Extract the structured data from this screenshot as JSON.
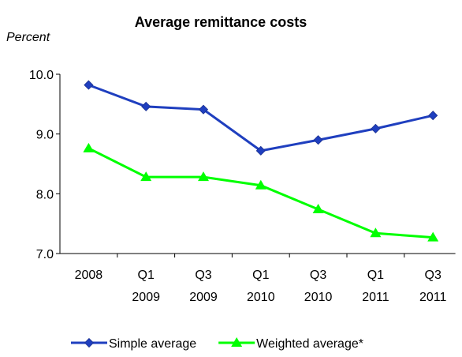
{
  "chart_data": {
    "type": "line",
    "title": "Average remittance costs",
    "y_label": "Percent",
    "categories": [
      "2008",
      "Q1 2009",
      "Q3 2009",
      "Q1 2010",
      "Q3 2010",
      "Q1 2011",
      "Q3 2011"
    ],
    "series": [
      {
        "name": "Simple average",
        "color": "#1f3fbf",
        "marker": "diamond",
        "values": [
          9.82,
          9.46,
          9.41,
          8.72,
          8.9,
          9.09,
          9.31
        ]
      },
      {
        "name": "Weighted average*",
        "color": "#00ff00",
        "marker": "triangle",
        "values": [
          8.76,
          8.28,
          8.28,
          8.14,
          7.74,
          7.34,
          7.27
        ]
      }
    ],
    "ylim": [
      7,
      10
    ],
    "yticks": [
      {
        "value": 7,
        "label": "7.0"
      },
      {
        "value": 8,
        "label": "8.0"
      },
      {
        "value": 9,
        "label": "9.0"
      },
      {
        "value": 10,
        "label": "10.0"
      }
    ],
    "grid": false,
    "legend": "bottom"
  }
}
